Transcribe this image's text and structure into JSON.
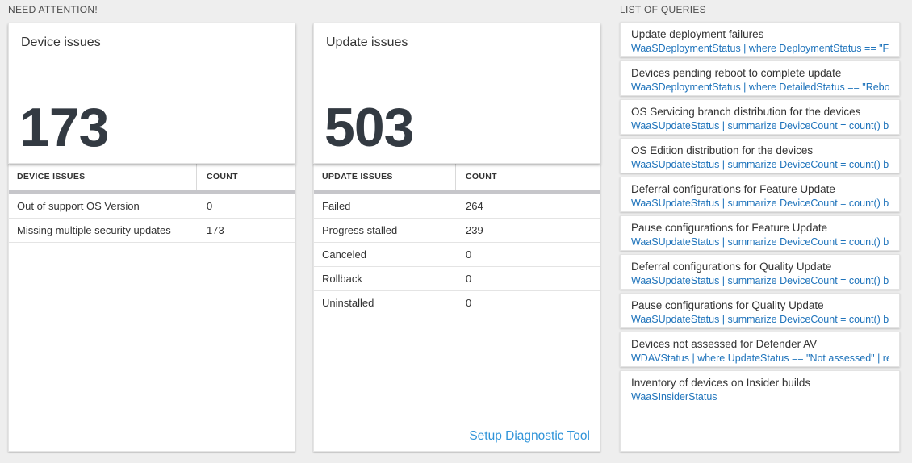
{
  "need_attention": {
    "header": "NEED ATTENTION!",
    "panels": [
      {
        "title": "Device issues",
        "metric": "173",
        "table": {
          "headers": [
            "DEVICE ISSUES",
            "COUNT"
          ],
          "rows": [
            [
              "Out of support OS Version",
              "0"
            ],
            [
              "Missing multiple security updates",
              "173"
            ]
          ]
        }
      },
      {
        "title": "Update issues",
        "metric": "503",
        "table": {
          "headers": [
            "UPDATE ISSUES",
            "COUNT"
          ],
          "rows": [
            [
              "Failed",
              "264"
            ],
            [
              "Progress stalled",
              "239"
            ],
            [
              "Canceled",
              "0"
            ],
            [
              "Rollback",
              "0"
            ],
            [
              "Uninstalled",
              "0"
            ]
          ]
        },
        "footer_link": "Setup Diagnostic Tool"
      }
    ]
  },
  "queries": {
    "header": "LIST OF QUERIES",
    "items": [
      {
        "title": "Update deployment failures",
        "query": "WaaSDeploymentStatus | where DeploymentStatus == \"Failed\" |..."
      },
      {
        "title": "Devices pending reboot to complete update",
        "query": "WaaSDeploymentStatus | where DetailedStatus == \"Reboot pend..."
      },
      {
        "title": "OS Servicing branch distribution for the devices",
        "query": "WaaSUpdateStatus | summarize DeviceCount = count() by OSSer..."
      },
      {
        "title": "OS Edition distribution for the devices",
        "query": "WaaSUpdateStatus | summarize DeviceCount = count() by OSEdit..."
      },
      {
        "title": "Deferral configurations for Feature Update",
        "query": "WaaSUpdateStatus | summarize DeviceCount = count() by Featur..."
      },
      {
        "title": "Pause configurations for Feature Update",
        "query": "WaaSUpdateStatus | summarize DeviceCount = count() by Featur..."
      },
      {
        "title": "Deferral configurations for Quality Update",
        "query": "WaaSUpdateStatus | summarize DeviceCount = count() by Qualit..."
      },
      {
        "title": "Pause configurations for Quality Update",
        "query": "WaaSUpdateStatus | summarize DeviceCount = count() by Qualit..."
      },
      {
        "title": "Devices not assessed for Defender AV",
        "query": "WDAVStatus | where UpdateStatus == \"Not assessed\" | render ta..."
      },
      {
        "title": "Inventory of devices on Insider builds",
        "query": "WaaSInsiderStatus"
      }
    ]
  },
  "colors": {
    "page_bg": "#eeeeee",
    "panel_bg": "#ffffff",
    "text_dark": "#333333",
    "metric_text": "#333a42",
    "query_blue": "#1e73bb",
    "setup_link_blue": "#3094d9",
    "thick_bar": "#c6c6ca"
  }
}
